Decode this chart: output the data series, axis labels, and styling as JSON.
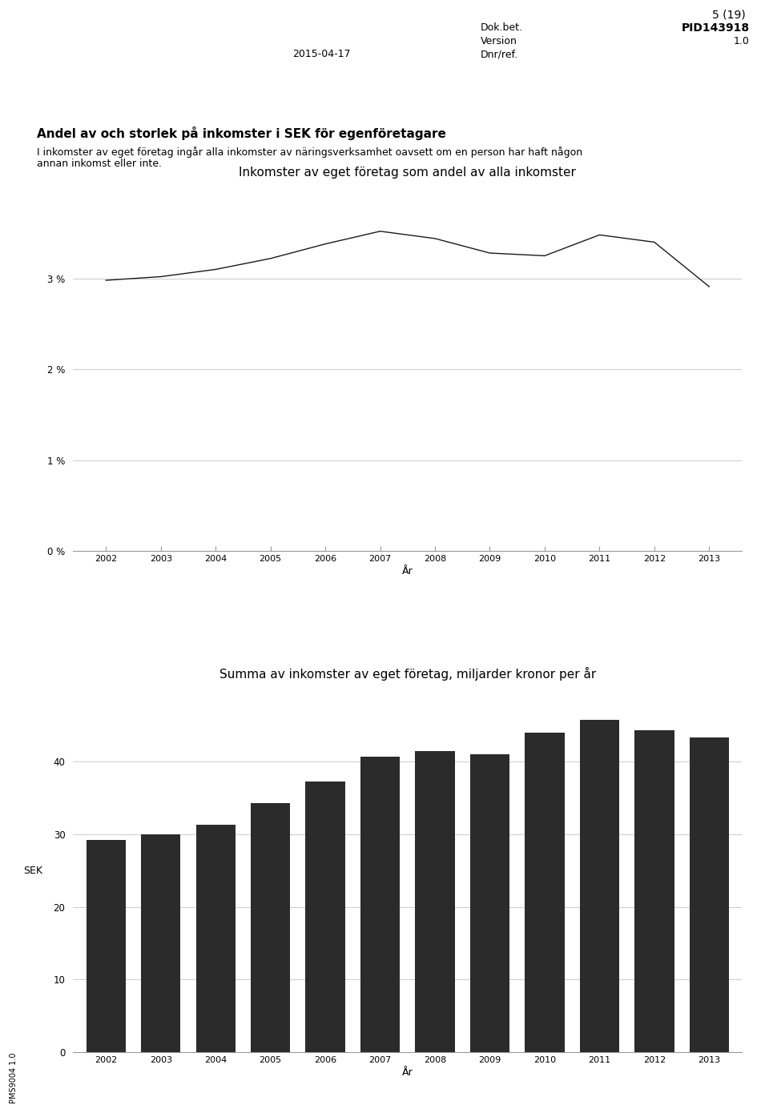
{
  "header_date": "2015-04-17",
  "header_doc": "Dok.bet.",
  "header_doc_val": "PID143918",
  "header_version": "Version",
  "header_version_val": "1.0",
  "header_dnr": "Dnr/ref.",
  "header_page": "5 (19)",
  "main_title": "Andel av och storlek på inkomster i SEK för egenföretagare",
  "subtitle_line1": "I inkomster av eget företag ingår alla inkomster av näringsverksamhet oavsett om en person har haft någon",
  "subtitle_line2": "annan inkomst eller inte.",
  "line_title": "Inkomster av eget företag som andel av alla inkomster",
  "bar_title": "Summa av inkomster av eget företag, miljarder kronor per år",
  "years": [
    2002,
    2003,
    2004,
    2005,
    2006,
    2007,
    2008,
    2009,
    2010,
    2011,
    2012,
    2013
  ],
  "line_values": [
    2.98,
    3.02,
    3.1,
    3.22,
    3.38,
    3.52,
    3.44,
    3.28,
    3.25,
    3.48,
    3.4,
    2.91
  ],
  "bar_values": [
    29.2,
    30.0,
    31.3,
    34.3,
    37.3,
    40.7,
    41.5,
    41.0,
    44.0,
    45.8,
    44.3,
    43.3
  ],
  "line_ylim": [
    0,
    4
  ],
  "line_yticks": [
    0,
    1,
    2,
    3
  ],
  "line_ytick_labels": [
    "0 %",
    "1 %",
    "2 %",
    "3 %"
  ],
  "bar_ylim": [
    0,
    50
  ],
  "bar_yticks": [
    0,
    10,
    20,
    30,
    40
  ],
  "bar_ytick_labels": [
    "0",
    "10",
    "20",
    "30",
    "40"
  ],
  "bar_ylabel": "SEK",
  "bar_xlabel": "År",
  "line_xlabel": "År",
  "line_color": "#1a1a1a",
  "bar_color": "#2b2b2b",
  "grid_color": "#cccccc",
  "text_color": "#000000",
  "background": "#ffffff",
  "footer_text": "PMS9004 1.0"
}
